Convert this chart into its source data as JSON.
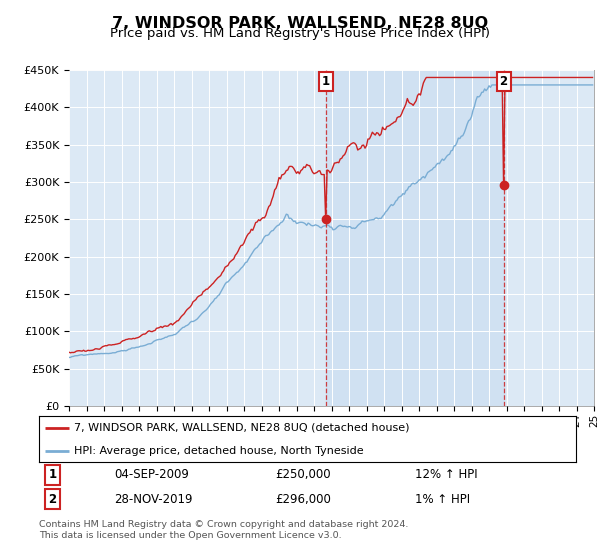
{
  "title": "7, WINDSOR PARK, WALLSEND, NE28 8UQ",
  "subtitle": "Price paid vs. HM Land Registry's House Price Index (HPI)",
  "title_fontsize": 11.5,
  "subtitle_fontsize": 9.5,
  "background_color": "#ffffff",
  "plot_bg_color": "#dce9f5",
  "shade_color": "#c8ddf0",
  "ylim": [
    0,
    450000
  ],
  "yticks": [
    0,
    50000,
    100000,
    150000,
    200000,
    250000,
    300000,
    350000,
    400000,
    450000
  ],
  "ytick_labels": [
    "£0",
    "£50K",
    "£100K",
    "£150K",
    "£200K",
    "£250K",
    "£300K",
    "£350K",
    "£400K",
    "£450K"
  ],
  "hpi_color": "#7aadd4",
  "price_color": "#cc2222",
  "marker1_price": 250000,
  "marker1_date_str": "04-SEP-2009",
  "marker1_pct": "12% ↑ HPI",
  "marker2_price": 296000,
  "marker2_date_str": "28-NOV-2019",
  "marker2_pct": "1% ↑ HPI",
  "legend_line1": "7, WINDSOR PARK, WALLSEND, NE28 8UQ (detached house)",
  "legend_line2": "HPI: Average price, detached house, North Tyneside",
  "footer_line1": "Contains HM Land Registry data © Crown copyright and database right 2024.",
  "footer_line2": "This data is licensed under the Open Government Licence v3.0."
}
